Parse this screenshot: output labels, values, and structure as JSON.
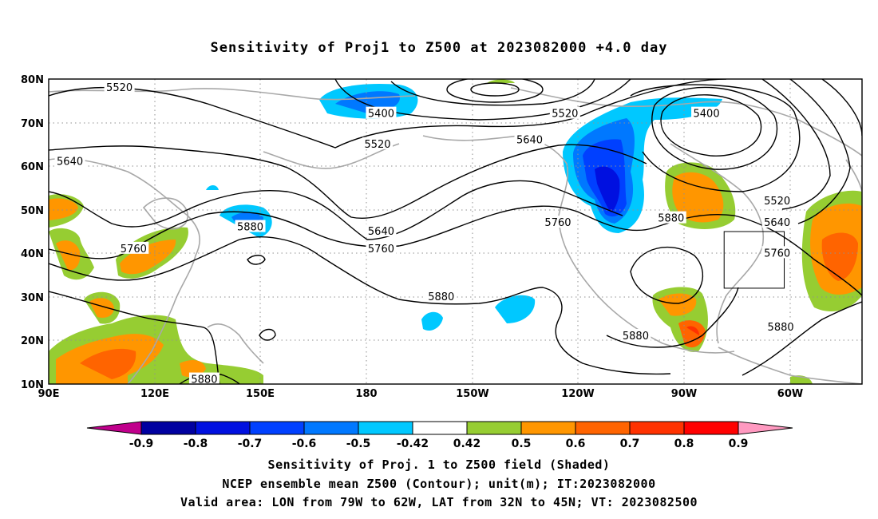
{
  "title": "Sensitivity of Proj1 to Z500 at 2023082000 +4.0 day",
  "map": {
    "lat_labels": [
      "80N",
      "70N",
      "60N",
      "50N",
      "40N",
      "30N",
      "20N",
      "10N"
    ],
    "lon_labels": [
      "90E",
      "120E",
      "150E",
      "180",
      "150W",
      "120W",
      "90W",
      "60W"
    ],
    "contour_labels": [
      {
        "text": "5520",
        "lon": 110,
        "lat": 78
      },
      {
        "text": "5400",
        "lon": 184,
        "lat": 72
      },
      {
        "text": "5520",
        "lon": 236,
        "lat": 72
      },
      {
        "text": "5400",
        "lon": 276,
        "lat": 72
      },
      {
        "text": "5640",
        "lon": 226,
        "lat": 66
      },
      {
        "text": "5520",
        "lon": 183,
        "lat": 65
      },
      {
        "text": "5640",
        "lon": 96,
        "lat": 61
      },
      {
        "text": "5520",
        "lon": 296,
        "lat": 52
      },
      {
        "text": "5880",
        "lon": 147,
        "lat": 46
      },
      {
        "text": "5760",
        "lon": 234,
        "lat": 47
      },
      {
        "text": "5880",
        "lon": 266,
        "lat": 48
      },
      {
        "text": "5640",
        "lon": 296,
        "lat": 47
      },
      {
        "text": "5640",
        "lon": 184,
        "lat": 45
      },
      {
        "text": "5760",
        "lon": 114,
        "lat": 41
      },
      {
        "text": "5760",
        "lon": 184,
        "lat": 41
      },
      {
        "text": "5760",
        "lon": 296,
        "lat": 40
      },
      {
        "text": "5880",
        "lon": 201,
        "lat": 30
      },
      {
        "text": "5880",
        "lon": 297,
        "lat": 23
      },
      {
        "text": "5880",
        "lon": 256,
        "lat": 21
      },
      {
        "text": "5880",
        "lon": 134,
        "lat": 11
      }
    ],
    "valid_box": {
      "lon_min": 281,
      "lon_max": 298,
      "lat_min": 32,
      "lat_max": 45
    }
  },
  "colorbar": {
    "labels": [
      "-0.9",
      "-0.8",
      "-0.7",
      "-0.6",
      "-0.5",
      "-0.42",
      "0.42",
      "0.5",
      "0.6",
      "0.7",
      "0.8",
      "0.9"
    ],
    "colors": {
      "below": "#c0008c",
      "bins": [
        "#0000a0",
        "#0010e0",
        "#0040ff",
        "#0078ff",
        "#00c8ff",
        "#ffffff",
        "#96cd32",
        "#ff9600",
        "#ff6400",
        "#ff3200",
        "#ff0000"
      ],
      "above": "#ff99c0"
    }
  },
  "caption": {
    "line1": "Sensitivity of Proj. 1 to Z500 field (Shaded)",
    "line2": "NCEP ensemble mean Z500 (Contour); unit(m); IT:2023082000",
    "line3": "Valid area: LON from 79W to 62W, LAT from 32N to 45N; VT: 2023082500"
  }
}
